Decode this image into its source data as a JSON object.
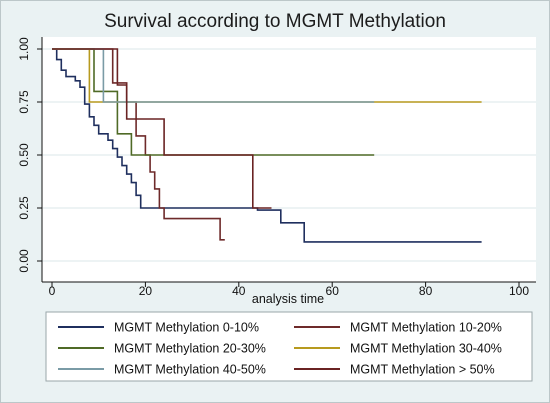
{
  "chart_data": {
    "type": "line",
    "subtype": "kaplan-meier-step",
    "title": "Survival according to MGMT Methylation",
    "xlabel": "analysis time",
    "ylabel": "",
    "xlim": [
      0,
      100
    ],
    "ylim": [
      0,
      1
    ],
    "x_ticks": [
      0,
      20,
      40,
      60,
      80,
      100
    ],
    "y_ticks": [
      "0.00",
      "0.25",
      "0.50",
      "0.75",
      "1.00"
    ],
    "y_tick_values": [
      0,
      0.25,
      0.5,
      0.75,
      1.0
    ],
    "grid": "horizontal",
    "legend_position": "bottom",
    "series": [
      {
        "name": "MGMT Methylation 0-10%",
        "color": "#1f2f5e",
        "points": [
          [
            0,
            1.0
          ],
          [
            1,
            1.0
          ],
          [
            1,
            0.95
          ],
          [
            2,
            0.95
          ],
          [
            2,
            0.9
          ],
          [
            3,
            0.9
          ],
          [
            3,
            0.87
          ],
          [
            5,
            0.87
          ],
          [
            5,
            0.85
          ],
          [
            6,
            0.85
          ],
          [
            6,
            0.82
          ],
          [
            7,
            0.82
          ],
          [
            7,
            0.74
          ],
          [
            8,
            0.74
          ],
          [
            8,
            0.68
          ],
          [
            9,
            0.68
          ],
          [
            9,
            0.64
          ],
          [
            10,
            0.64
          ],
          [
            10,
            0.6
          ],
          [
            12,
            0.6
          ],
          [
            12,
            0.57
          ],
          [
            13,
            0.57
          ],
          [
            13,
            0.53
          ],
          [
            14,
            0.53
          ],
          [
            14,
            0.49
          ],
          [
            15,
            0.49
          ],
          [
            15,
            0.45
          ],
          [
            16,
            0.45
          ],
          [
            16,
            0.41
          ],
          [
            17,
            0.41
          ],
          [
            17,
            0.37
          ],
          [
            18,
            0.37
          ],
          [
            18,
            0.31
          ],
          [
            19,
            0.31
          ],
          [
            19,
            0.25
          ],
          [
            44,
            0.25
          ],
          [
            44,
            0.24
          ],
          [
            49,
            0.24
          ],
          [
            49,
            0.18
          ],
          [
            54,
            0.18
          ],
          [
            54,
            0.09
          ],
          [
            92,
            0.09
          ]
        ]
      },
      {
        "name": "MGMT Methylation 10-20%",
        "color": "#6e2a2a",
        "points": [
          [
            0,
            1.0
          ],
          [
            13,
            1.0
          ],
          [
            13,
            0.84
          ],
          [
            16,
            0.84
          ],
          [
            16,
            0.75
          ],
          [
            18,
            0.75
          ],
          [
            18,
            0.59
          ],
          [
            20,
            0.59
          ],
          [
            20,
            0.5
          ],
          [
            21,
            0.5
          ],
          [
            21,
            0.42
          ],
          [
            22,
            0.42
          ],
          [
            22,
            0.34
          ],
          [
            23,
            0.34
          ],
          [
            23,
            0.25
          ],
          [
            24,
            0.25
          ],
          [
            24,
            0.2
          ],
          [
            36,
            0.2
          ],
          [
            36,
            0.1
          ],
          [
            37,
            0.1
          ]
        ]
      },
      {
        "name": "MGMT Methylation 20-30%",
        "color": "#4f6a26",
        "points": [
          [
            0,
            1.0
          ],
          [
            9,
            1.0
          ],
          [
            9,
            0.8
          ],
          [
            14,
            0.8
          ],
          [
            14,
            0.6
          ],
          [
            17,
            0.6
          ],
          [
            17,
            0.5
          ],
          [
            69,
            0.5
          ]
        ]
      },
      {
        "name": "MGMT Methylation 30-40%",
        "color": "#b79a1e",
        "points": [
          [
            0,
            1.0
          ],
          [
            8,
            1.0
          ],
          [
            8,
            0.75
          ],
          [
            92,
            0.75
          ]
        ]
      },
      {
        "name": "MGMT Methylation 40-50%",
        "color": "#7a9ba6",
        "points": [
          [
            0,
            1.0
          ],
          [
            11,
            1.0
          ],
          [
            11,
            0.75
          ],
          [
            69,
            0.75
          ]
        ]
      },
      {
        "name": "MGMT Methylation > 50%",
        "color": "#6a2323",
        "points": [
          [
            0,
            1.0
          ],
          [
            14,
            1.0
          ],
          [
            14,
            0.83
          ],
          [
            16,
            0.83
          ],
          [
            16,
            0.67
          ],
          [
            24,
            0.67
          ],
          [
            24,
            0.5
          ],
          [
            43,
            0.5
          ],
          [
            43,
            0.25
          ],
          [
            47,
            0.25
          ]
        ]
      }
    ]
  },
  "colors": {
    "background": "#eaf2f3",
    "plot_background": "#ffffff",
    "grid": "#e2ecee"
  }
}
